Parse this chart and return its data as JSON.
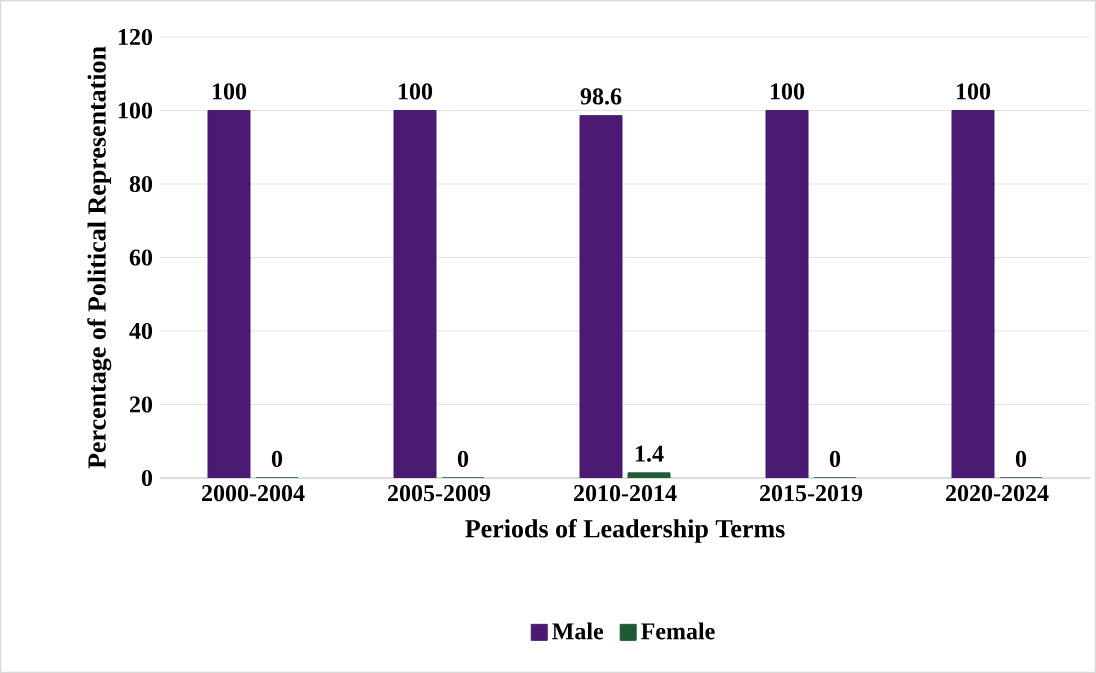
{
  "chart_data": {
    "type": "bar",
    "xlabel": "Periods of Leadership Terms",
    "ylabel": "Percentage of Political Representation",
    "categories": [
      "2000-2004",
      "2005-2009",
      "2010-2014",
      "2015-2019",
      "2020-2024"
    ],
    "series": [
      {
        "name": "Male",
        "color": "#4b1a72",
        "values": [
          100,
          100,
          98.6,
          100,
          100
        ]
      },
      {
        "name": "Female",
        "color": "#1f5a34",
        "values": [
          0,
          0,
          1.4,
          0,
          0
        ]
      }
    ],
    "ylim": [
      0,
      120
    ],
    "yticks": [
      0,
      20,
      40,
      60,
      80,
      100,
      120
    ],
    "grid": "y",
    "legend": "bottom",
    "data_labels": true
  }
}
